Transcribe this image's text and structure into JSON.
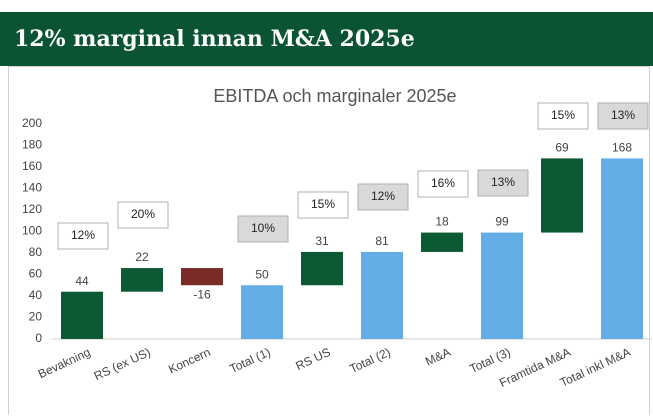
{
  "header": {
    "title": "12% marginal innan M&A 2025e"
  },
  "chart_data": {
    "type": "waterfall",
    "title": "EBITDA och marginaler 2025e",
    "categories": [
      "Bevakning",
      "RS (ex US)",
      "Koncern",
      "Total (1)",
      "RS US",
      "Total (2)",
      "M&A",
      "Total (3)",
      "Framtida M&A",
      "Total inkl M&A"
    ],
    "values": [
      44,
      22,
      -16,
      50,
      31,
      81,
      18,
      99,
      69,
      168
    ],
    "colors": [
      "#0b5a34",
      "#0b5a34",
      "#7b2c28",
      "#62ade6",
      "#0b5a34",
      "#62ade6",
      "#0b5a34",
      "#62ade6",
      "#0b5a34",
      "#62ade6"
    ],
    "margin_labels": [
      "12%",
      "20%",
      null,
      "10%",
      "15%",
      "12%",
      "16%",
      "13%",
      "15%",
      "13%"
    ],
    "margin_fills": [
      "#ffffff",
      "#ffffff",
      null,
      "#d9d9d9",
      "#ffffff",
      "#d9d9d9",
      "#ffffff",
      "#d9d9d9",
      "#ffffff",
      "#d9d9d9"
    ],
    "ylim": [
      0,
      200
    ],
    "yticks": [
      0,
      20,
      40,
      60,
      80,
      100,
      120,
      140,
      160,
      180,
      200
    ]
  }
}
